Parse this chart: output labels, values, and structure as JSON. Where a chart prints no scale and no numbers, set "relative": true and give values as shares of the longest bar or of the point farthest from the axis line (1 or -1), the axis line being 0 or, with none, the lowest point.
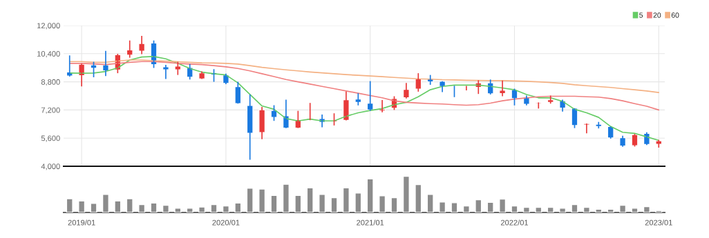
{
  "chart_data": [
    {
      "type": "candlestick",
      "categories": [
        null,
        "2019/01",
        null,
        null,
        null,
        null,
        null,
        null,
        null,
        null,
        null,
        null,
        null,
        "2020/01",
        null,
        null,
        null,
        null,
        null,
        null,
        null,
        null,
        null,
        null,
        null,
        "2021/01",
        null,
        null,
        null,
        null,
        null,
        null,
        null,
        null,
        null,
        null,
        null,
        "2022/01",
        null,
        null,
        null,
        null,
        null,
        null,
        null,
        null,
        null,
        null,
        null,
        "2023/01"
      ],
      "ohlc": [
        [
          9360,
          10300,
          9100,
          9130
        ],
        [
          9150,
          9830,
          8540,
          9800
        ],
        [
          9760,
          9940,
          9060,
          9570
        ],
        [
          9760,
          10560,
          9130,
          9420
        ],
        [
          9470,
          10390,
          9290,
          10340
        ],
        [
          10320,
          11150,
          10170,
          10620
        ],
        [
          10540,
          11410,
          10370,
          10980
        ],
        [
          11010,
          11150,
          9590,
          9780
        ],
        [
          9650,
          9760,
          8960,
          9480
        ],
        [
          9480,
          9940,
          9190,
          9690
        ],
        [
          9620,
          9810,
          8930,
          9060
        ],
        [
          8960,
          9390,
          8960,
          9310
        ],
        [
          9320,
          9520,
          8800,
          9190
        ],
        [
          9190,
          9260,
          8670,
          8710
        ],
        [
          8530,
          8800,
          7560,
          7560
        ],
        [
          7460,
          8080,
          4370,
          5870
        ],
        [
          5910,
          7370,
          5540,
          7210
        ],
        [
          7170,
          7470,
          6580,
          6780
        ],
        [
          6870,
          7780,
          6170,
          6170
        ],
        [
          6170,
          7150,
          6170,
          6650
        ],
        [
          6650,
          7600,
          6620,
          6710
        ],
        [
          6710,
          6940,
          6220,
          6490
        ],
        [
          6520,
          7010,
          6320,
          6610
        ],
        [
          6610,
          8250,
          6610,
          7780
        ],
        [
          7820,
          8150,
          7460,
          7630
        ],
        [
          7590,
          8840,
          7150,
          7200
        ],
        [
          7150,
          7760,
          7070,
          7240
        ],
        [
          7300,
          7980,
          7200,
          7850
        ],
        [
          7890,
          8740,
          7850,
          8370
        ],
        [
          8380,
          9290,
          8240,
          8970
        ],
        [
          9000,
          9190,
          8630,
          8800
        ],
        [
          8830,
          8830,
          8220,
          8530
        ],
        [
          8540,
          8580,
          7930,
          8480
        ],
        [
          8480,
          8570,
          8310,
          8520
        ],
        [
          8480,
          8890,
          8110,
          8740
        ],
        [
          8740,
          8930,
          8080,
          8120
        ],
        [
          8130,
          8870,
          7980,
          8320
        ],
        [
          8350,
          8410,
          7460,
          7850
        ],
        [
          7930,
          8020,
          7460,
          7520
        ],
        [
          7560,
          7630,
          7280,
          7630
        ],
        [
          7630,
          8020,
          7560,
          7780
        ],
        [
          7720,
          7780,
          7110,
          7310
        ],
        [
          7300,
          7300,
          6170,
          6320
        ],
        [
          6350,
          6430,
          5870,
          6430
        ],
        [
          6390,
          6520,
          6150,
          6260
        ],
        [
          6260,
          6260,
          5570,
          5610
        ],
        [
          5630,
          5740,
          5110,
          5150
        ],
        [
          5170,
          5840,
          5120,
          5800
        ],
        [
          5870,
          5930,
          5210,
          5240
        ],
        [
          5250,
          5500,
          5060,
          5450
        ]
      ],
      "colors": [
        "#1a7ae0",
        "#e83a3a",
        "#1a7ae0",
        "#1a7ae0",
        "#e83a3a",
        "#e83a3a",
        "#e83a3a",
        "#1a7ae0",
        "#1a7ae0",
        "#e83a3a",
        "#1a7ae0",
        "#e83a3a",
        "#1a7ae0",
        "#1a7ae0",
        "#1a7ae0",
        "#1a7ae0",
        "#e83a3a",
        "#1a7ae0",
        "#1a7ae0",
        "#e83a3a",
        "#e83a3a",
        "#1a7ae0",
        "#e83a3a",
        "#e83a3a",
        "#1a7ae0",
        "#1a7ae0",
        "#e83a3a",
        "#e83a3a",
        "#e83a3a",
        "#e83a3a",
        "#1a7ae0",
        "#1a7ae0",
        "#1a7ae0",
        "#e83a3a",
        "#e83a3a",
        "#1a7ae0",
        "#e83a3a",
        "#1a7ae0",
        "#1a7ae0",
        "#e83a3a",
        "#e83a3a",
        "#1a7ae0",
        "#1a7ae0",
        "#e83a3a",
        "#1a7ae0",
        "#1a7ae0",
        "#1a7ae0",
        "#e83a3a",
        "#1a7ae0",
        "#e83a3a"
      ],
      "series": [
        {
          "name": "5",
          "type": "line",
          "color": "#66cc66",
          "values": [
            9300,
            9290,
            9300,
            9390,
            9590,
            10040,
            10210,
            10240,
            10110,
            9850,
            9560,
            9350,
            9260,
            9190,
            8740,
            8080,
            7430,
            7240,
            6710,
            6580,
            6680,
            6580,
            6580,
            6840,
            7040,
            7170,
            7280,
            7500,
            7630,
            7950,
            8350,
            8540,
            8610,
            8610,
            8610,
            8540,
            8450,
            8350,
            8080,
            7890,
            7890,
            7690,
            7240,
            7040,
            6780,
            6260,
            5930,
            5870,
            5670,
            5470
          ]
        },
        {
          "name": "20",
          "type": "line",
          "color": "#f08080",
          "values": [
            9850,
            9850,
            9820,
            9780,
            9850,
            9910,
            9950,
            9950,
            9910,
            9850,
            9810,
            9780,
            9720,
            9650,
            9560,
            9420,
            9260,
            9100,
            8930,
            8800,
            8670,
            8540,
            8410,
            8280,
            8150,
            8020,
            7890,
            7720,
            7630,
            7590,
            7560,
            7540,
            7500,
            7470,
            7500,
            7590,
            7720,
            7820,
            7890,
            7950,
            7980,
            7980,
            7980,
            7950,
            7930,
            7850,
            7720,
            7560,
            7410,
            7200
          ]
        },
        {
          "name": "60",
          "type": "line",
          "color": "#f4b183",
          "values": [
            9950,
            9950,
            9910,
            9910,
            9980,
            10040,
            10040,
            10000,
            9980,
            9940,
            9910,
            9880,
            9870,
            9850,
            9810,
            9720,
            9620,
            9550,
            9480,
            9420,
            9360,
            9310,
            9260,
            9210,
            9170,
            9130,
            9090,
            9050,
            9010,
            8970,
            8950,
            8920,
            8910,
            8890,
            8880,
            8870,
            8870,
            8850,
            8830,
            8800,
            8760,
            8710,
            8630,
            8580,
            8530,
            8480,
            8410,
            8350,
            8280,
            8190
          ]
        }
      ],
      "ylim": [
        4000,
        12000
      ],
      "yticks": [
        {
          "value": 4000,
          "label": "4,000"
        },
        {
          "value": 5600,
          "label": "5,600"
        },
        {
          "value": 7200,
          "label": "7,200"
        },
        {
          "value": 8800,
          "label": "8,800"
        },
        {
          "value": 10400,
          "label": "10,400"
        },
        {
          "value": 12000,
          "label": "12,000"
        }
      ],
      "grid": true,
      "legend": "top right",
      "tick_labels": "y"
    },
    {
      "type": "bar",
      "relative": true,
      "tick_labels": "x",
      "categories": [
        null,
        "2019/01",
        null,
        null,
        null,
        null,
        null,
        null,
        null,
        null,
        null,
        null,
        null,
        "2020/01",
        null,
        null,
        null,
        null,
        null,
        null,
        null,
        null,
        null,
        null,
        null,
        "2021/01",
        null,
        null,
        null,
        null,
        null,
        null,
        null,
        null,
        null,
        null,
        null,
        "2022/01",
        null,
        null,
        null,
        null,
        null,
        null,
        null,
        null,
        null,
        null,
        null,
        "2023/01"
      ],
      "values": [
        0.38,
        0.32,
        0.25,
        0.5,
        0.32,
        0.38,
        0.22,
        0.26,
        0.2,
        0.12,
        0.12,
        0.15,
        0.22,
        0.18,
        0.26,
        0.67,
        0.65,
        0.47,
        0.78,
        0.47,
        0.68,
        0.5,
        0.41,
        0.68,
        0.54,
        0.93,
        0.46,
        0.41,
        1,
        0.77,
        0.5,
        0.29,
        0.27,
        0.18,
        0.35,
        0.28,
        0.37,
        0.18,
        0.14,
        0.14,
        0.14,
        0.12,
        0.22,
        0.14,
        0.09,
        0.09,
        0.2,
        0.12,
        0.16,
        0.05
      ],
      "color": "#8c8c8c"
    }
  ]
}
